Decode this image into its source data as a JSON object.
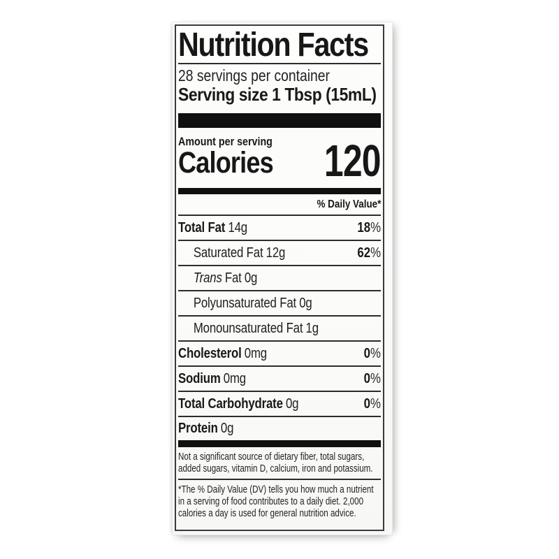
{
  "label": {
    "title": "Nutrition Facts",
    "servings_per_container": "28 servings per container",
    "serving_size": "Serving size 1 Tbsp (15mL)",
    "amount_per_serving": "Amount per serving",
    "calories_label": "Calories",
    "calories_value": "120",
    "daily_value_header": "% Daily Value*",
    "rows": [
      {
        "name": "Total Fat",
        "amount": "14g",
        "dv_number": "18",
        "dv_unit": "%"
      },
      {
        "name": "Saturated Fat",
        "amount": "12g",
        "dv_number": "62",
        "dv_unit": "%"
      },
      {
        "name_italic": "Trans",
        "name": "Fat",
        "amount": "0g"
      },
      {
        "name": "Polyunsaturated Fat",
        "amount": "0g"
      },
      {
        "name": "Monounsaturated Fat",
        "amount": "1g"
      },
      {
        "name": "Cholesterol",
        "amount": "0mg",
        "dv_number": "0",
        "dv_unit": "%"
      },
      {
        "name": "Sodium",
        "amount": "0mg",
        "dv_number": "0",
        "dv_unit": "%"
      },
      {
        "name": "Total Carbohydrate",
        "amount": "0g",
        "dv_number": "0",
        "dv_unit": "%"
      },
      {
        "name": "Protein",
        "amount": "0g"
      }
    ],
    "footer": {
      "not_significant_line1": "Not a significant source of dietary fiber, total sugars,",
      "not_significant_line2": "added sugars, vitamin D, calcium, iron and potassium.",
      "daily_value_note_line1": "*The % Daily Value (DV) tells you how much a nutrient",
      "daily_value_note_line2": "in a serving of food contributes to a daily diet. 2,000",
      "daily_value_note_line3": "calories a day is used for general nutrition advice."
    },
    "colors": {
      "ink": "#1d1d1d",
      "bar": "#101010",
      "paper": "#fbfbf9",
      "backdrop": "#ffffff"
    }
  }
}
